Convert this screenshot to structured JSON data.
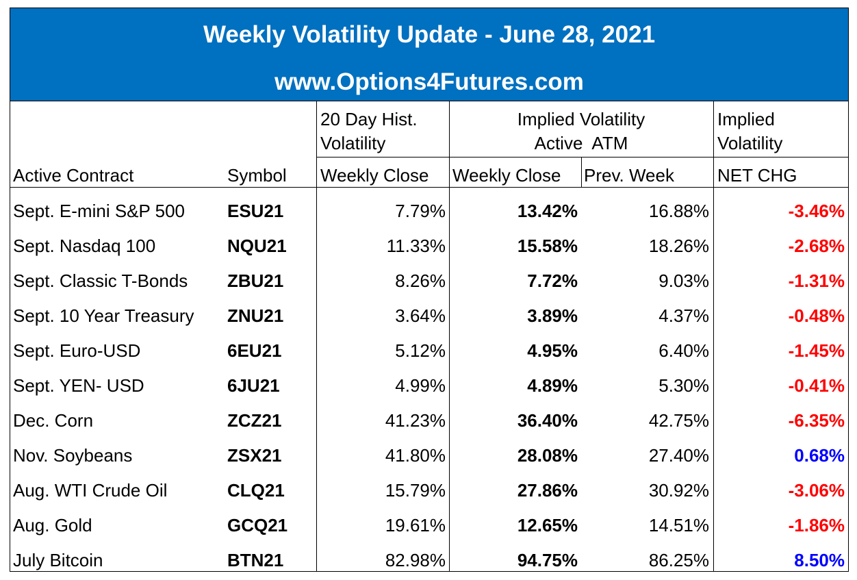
{
  "title": "Weekly Volatility Update - June 28, 2021",
  "website": "www.Options4Futures.com",
  "headers": {
    "hist_group": "20 Day Hist. Volatility",
    "hist_line1": "20 Day Hist.",
    "hist_line2": "Volatility",
    "implied_group_line1": "Implied Volatility",
    "implied_group_line2": "Active  ATM",
    "netchg_group_line1": "Implied",
    "netchg_group_line2": "Volatility",
    "active_contract": "Active Contract",
    "symbol": "Symbol",
    "hist_weekly_close": "Weekly Close",
    "iv_weekly_close": "Weekly Close",
    "prev_week": "Prev. Week",
    "net_chg": "NET CHG"
  },
  "colors": {
    "banner": "#0070c0",
    "negative": "#ff0000",
    "positive": "#0000ff"
  },
  "rows": [
    {
      "contract": "Sept. E-mini S&P 500",
      "symbol": "ESU21",
      "hist": "7.79%",
      "iv": "13.42%",
      "prev": "16.88%",
      "chg": "-3.46%",
      "sign": "neg"
    },
    {
      "contract": "Sept. Nasdaq 100",
      "symbol": "NQU21",
      "hist": "11.33%",
      "iv": "15.58%",
      "prev": "18.26%",
      "chg": "-2.68%",
      "sign": "neg"
    },
    {
      "contract": "Sept. Classic T-Bonds",
      "symbol": "ZBU21",
      "hist": "8.26%",
      "iv": "7.72%",
      "prev": "9.03%",
      "chg": "-1.31%",
      "sign": "neg"
    },
    {
      "contract": "Sept. 10 Year Treasury",
      "symbol": "ZNU21",
      "hist": "3.64%",
      "iv": "3.89%",
      "prev": "4.37%",
      "chg": "-0.48%",
      "sign": "neg"
    },
    {
      "contract": "Sept. Euro-USD",
      "symbol": "6EU21",
      "hist": "5.12%",
      "iv": "4.95%",
      "prev": "6.40%",
      "chg": "-1.45%",
      "sign": "neg"
    },
    {
      "contract": "Sept. YEN- USD",
      "symbol": "6JU21",
      "hist": "4.99%",
      "iv": "4.89%",
      "prev": "5.30%",
      "chg": "-0.41%",
      "sign": "neg"
    },
    {
      "contract": "Dec. Corn",
      "symbol": "ZCZ21",
      "hist": "41.23%",
      "iv": "36.40%",
      "prev": "42.75%",
      "chg": "-6.35%",
      "sign": "neg"
    },
    {
      "contract": "Nov. Soybeans",
      "symbol": "ZSX21",
      "hist": "41.80%",
      "iv": "28.08%",
      "prev": "27.40%",
      "chg": "0.68%",
      "sign": "pos"
    },
    {
      "contract": "Aug. WTI Crude Oil",
      "symbol": "CLQ21",
      "hist": "15.79%",
      "iv": "27.86%",
      "prev": "30.92%",
      "chg": "-3.06%",
      "sign": "neg"
    },
    {
      "contract": "Aug. Gold",
      "symbol": "GCQ21",
      "hist": "19.61%",
      "iv": "12.65%",
      "prev": "14.51%",
      "chg": "-1.86%",
      "sign": "neg"
    },
    {
      "contract": "July Bitcoin",
      "symbol": "BTN21",
      "hist": "82.98%",
      "iv": "94.75%",
      "prev": "86.25%",
      "chg": "8.50%",
      "sign": "pos"
    }
  ]
}
